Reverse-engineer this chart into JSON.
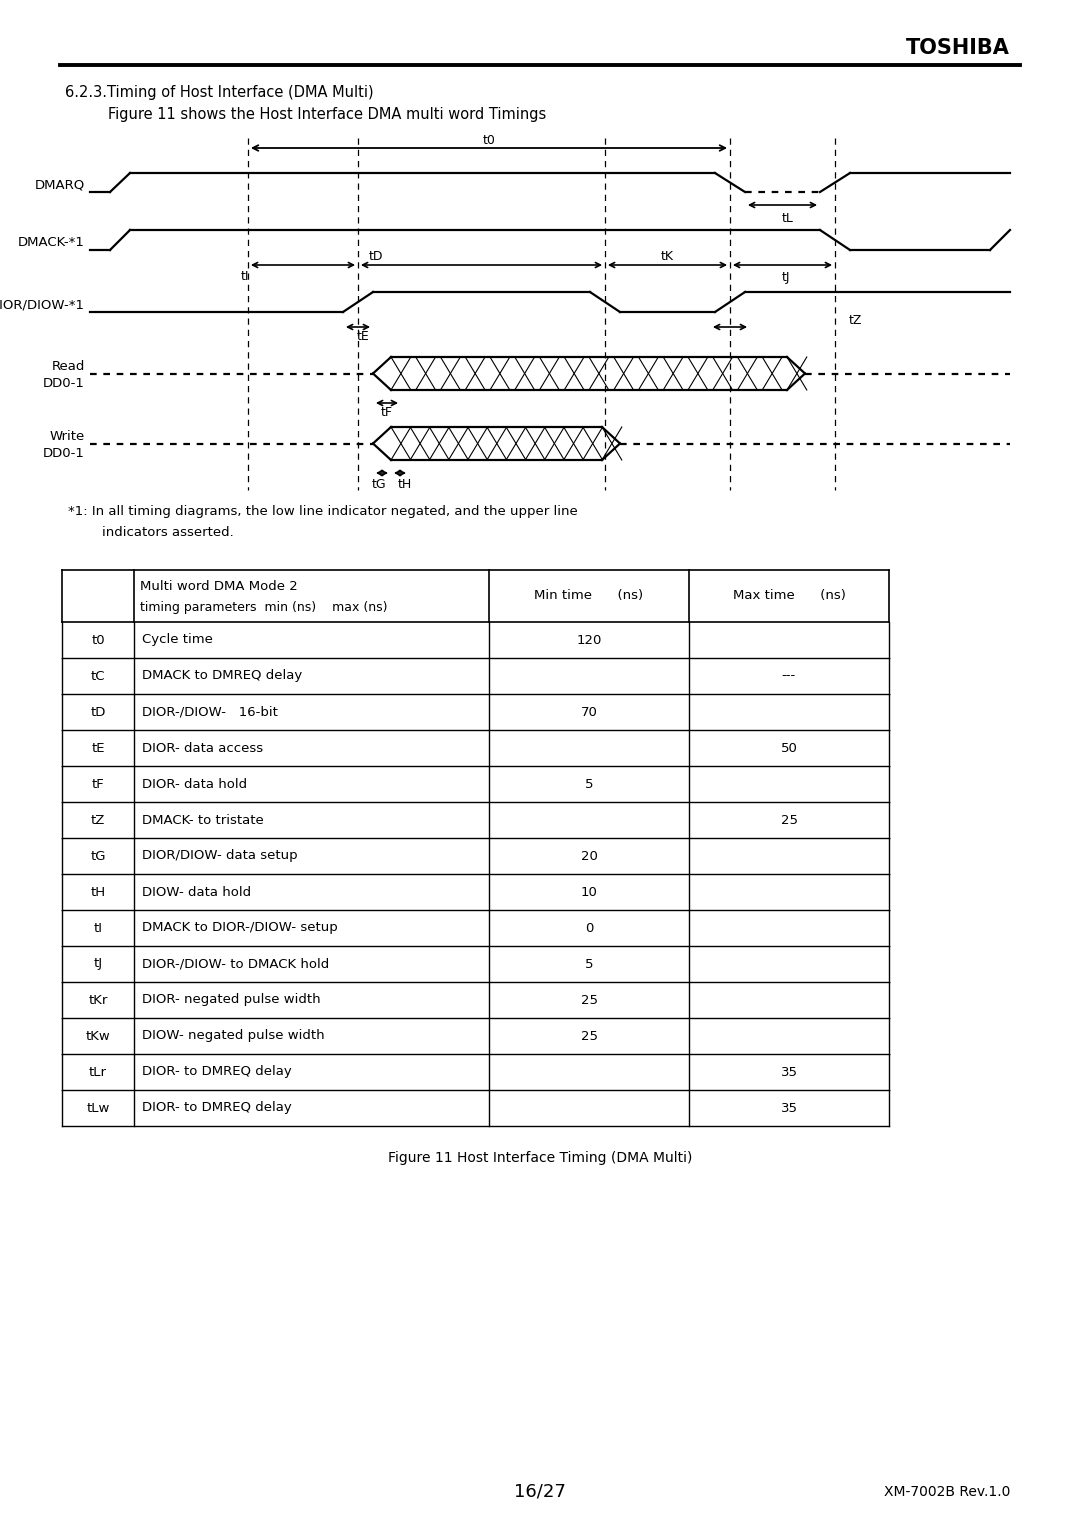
{
  "title_section": "6.2.3.Timing of Host Interface (DMA Multi)",
  "subtitle_section": "Figure 11 shows the Host Interface DMA multi word Timings",
  "footnote_line1": "*1: In all timing diagrams, the low line indicator negated, and the upper line",
  "footnote_line2": "        indicators asserted.",
  "figure_caption": "Figure 11 Host Interface Timing (DMA Multi)",
  "page_info": "16/27",
  "model_info": "XM-7002B Rev.1.0",
  "toshiba_header": "TOSHIBA",
  "table_header_col2_line1": "Multi word DMA Mode 2",
  "table_header_col2_line2": "timing parameters  min (ns)    max (ns)",
  "table_header_col3": "Min time      (ns)",
  "table_header_col4": "Max time      (ns)",
  "table_rows": [
    [
      "t0",
      "Cycle time",
      "120",
      ""
    ],
    [
      "tC",
      "DMACK to DMREQ delay",
      "",
      "---"
    ],
    [
      "tD",
      "DIOR-/DIOW-   16-bit",
      "70",
      ""
    ],
    [
      "tE",
      "DIOR- data access",
      "",
      "50"
    ],
    [
      "tF",
      "DIOR- data hold",
      "5",
      ""
    ],
    [
      "tZ",
      "DMACK- to tristate",
      "",
      "25"
    ],
    [
      "tG",
      "DIOR/DIOW- data setup",
      "20",
      ""
    ],
    [
      "tH",
      "DIOW- data hold",
      "10",
      ""
    ],
    [
      "tI",
      "DMACK to DIOR-/DIOW- setup",
      "0",
      ""
    ],
    [
      "tJ",
      "DIOR-/DIOW- to DMACK hold",
      "5",
      ""
    ],
    [
      "tKr",
      "DIOR- negated pulse width",
      "25",
      ""
    ],
    [
      "tKw",
      "DIOW- negated pulse width",
      "25",
      ""
    ],
    [
      "tLr",
      "DIOR- to DMREQ delay",
      "",
      "35"
    ],
    [
      "tLw",
      "DIOR- to DMREQ delay",
      "",
      "35"
    ]
  ],
  "bg_color": "#ffffff",
  "line_color": "#000000"
}
